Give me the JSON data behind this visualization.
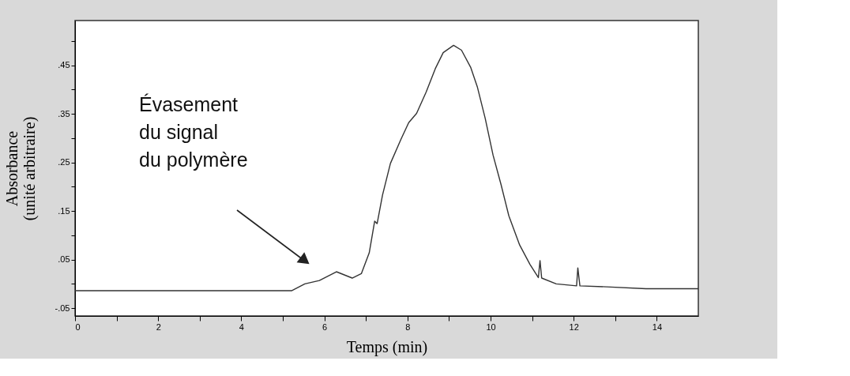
{
  "chart_data": {
    "type": "line",
    "xlabel": "Temps (min)",
    "ylabel": "Absorbance\n(unité arbitraire)",
    "x": [
      0,
      5.21,
      5.53,
      5.88,
      6.29,
      6.67,
      6.89,
      7.08,
      7.21,
      7.27,
      7.4,
      7.59,
      7.84,
      8.03,
      8.22,
      8.45,
      8.67,
      8.86,
      9.11,
      9.3,
      9.52,
      9.68,
      9.87,
      10.06,
      10.25,
      10.44,
      10.7,
      10.95,
      11.15,
      11.19,
      11.23,
      11.58,
      12.07,
      12.1,
      12.15,
      12.79,
      13.74,
      15
    ],
    "series": [
      {
        "color": "#333333",
        "values": [
          -0.014,
          -0.014,
          0.0,
          0.007,
          0.025,
          0.012,
          0.021,
          0.064,
          0.129,
          0.124,
          0.183,
          0.248,
          0.297,
          0.332,
          0.351,
          0.395,
          0.443,
          0.476,
          0.491,
          0.481,
          0.446,
          0.406,
          0.341,
          0.265,
          0.205,
          0.14,
          0.08,
          0.04,
          0.013,
          0.048,
          0.012,
          0.0,
          -0.004,
          0.033,
          -0.004,
          -0.006,
          -0.01,
          -0.01
        ]
      }
    ],
    "xlim": [
      0,
      15
    ],
    "xticks": [
      0,
      {
        "value": 1,
        "label": null
      },
      2,
      {
        "value": 3,
        "label": null
      },
      4,
      {
        "value": 5,
        "label": null
      },
      6,
      {
        "value": 7,
        "label": null
      },
      8,
      {
        "value": 9,
        "label": null
      },
      10,
      {
        "value": 11,
        "label": null
      },
      12,
      {
        "value": 13,
        "label": null
      },
      14
    ],
    "ylim": [
      -0.066,
      0.542
    ],
    "yticks": [
      {
        "value": -0.05,
        "label": "-.05"
      },
      {
        "value": 0,
        "label": null
      },
      {
        "value": 0.05,
        "label": ".05"
      },
      {
        "value": 0.1,
        "label": null
      },
      {
        "value": 0.15,
        "label": ".15"
      },
      {
        "value": 0.2,
        "label": null
      },
      {
        "value": 0.25,
        "label": ".25"
      },
      {
        "value": 0.3,
        "label": null
      },
      {
        "value": 0.35,
        "label": ".35"
      },
      {
        "value": 0.4,
        "label": null
      },
      {
        "value": 0.45,
        "label": ".45"
      },
      {
        "value": 0.5,
        "label": null
      }
    ],
    "annotations": [
      "Évasement\ndu signal\ndu polymère"
    ],
    "grid": false,
    "marker": "none",
    "line_style": "solid"
  }
}
